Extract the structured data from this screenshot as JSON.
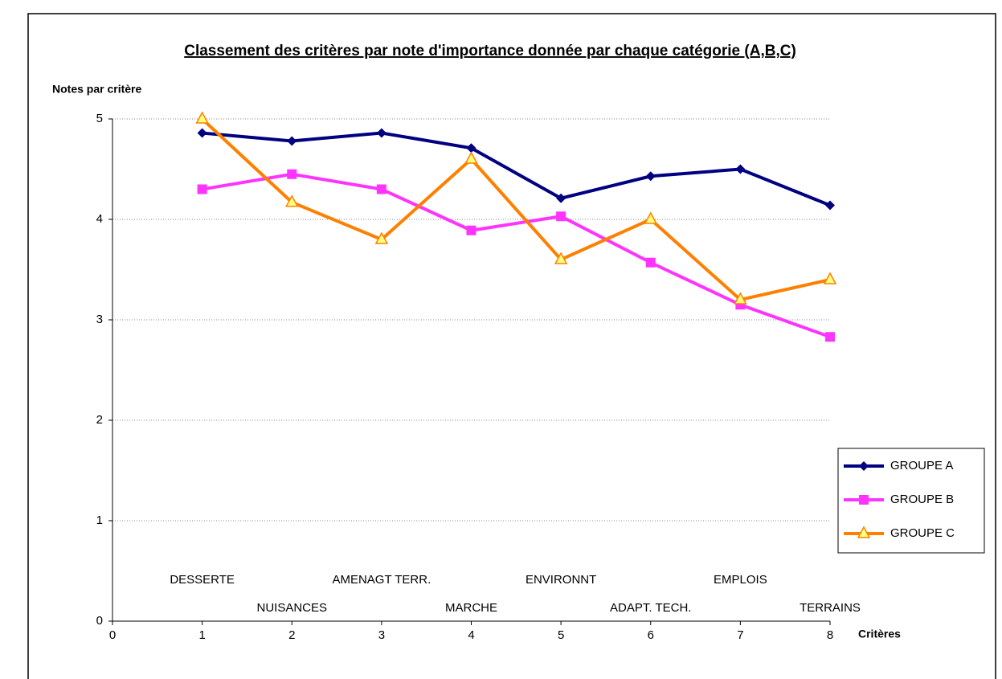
{
  "chart_data": {
    "type": "line",
    "title": "Classement des critères par note d'importance donnée par chaque catégorie (A,B,C)",
    "y_label": "Notes par critère",
    "x_label": "Critères",
    "x": [
      1,
      2,
      3,
      4,
      5,
      6,
      7,
      8
    ],
    "annotations": [
      "DESSERTE",
      "NUISANCES",
      "AMENAGT TERR.",
      "MARCHE",
      "ENVIRONNT",
      "ADAPT. TECH.",
      "EMPLOIS",
      "TERRAINS"
    ],
    "series": [
      {
        "name": "GROUPE A",
        "color": "#000080",
        "marker": "diamond",
        "values": [
          4.86,
          4.78,
          4.86,
          4.71,
          4.21,
          4.43,
          4.5,
          4.14
        ]
      },
      {
        "name": "GROUPE B",
        "color": "#ff33ff",
        "marker": "square",
        "values": [
          4.3,
          4.45,
          4.3,
          3.89,
          4.03,
          3.57,
          3.15,
          2.83
        ]
      },
      {
        "name": "GROUPE C",
        "color": "#ff8000",
        "marker": "triangle",
        "values": [
          5,
          4.17,
          3.8,
          4.6,
          3.6,
          4,
          3.2,
          3.4
        ]
      }
    ],
    "xlim": [
      0,
      8
    ],
    "xticks": [
      0,
      1,
      2,
      3,
      4,
      5,
      6,
      7,
      8
    ],
    "ylim": [
      0,
      5
    ],
    "yticks": [
      0,
      1,
      2,
      3,
      4,
      5
    ],
    "grid": true,
    "legend": "right"
  }
}
